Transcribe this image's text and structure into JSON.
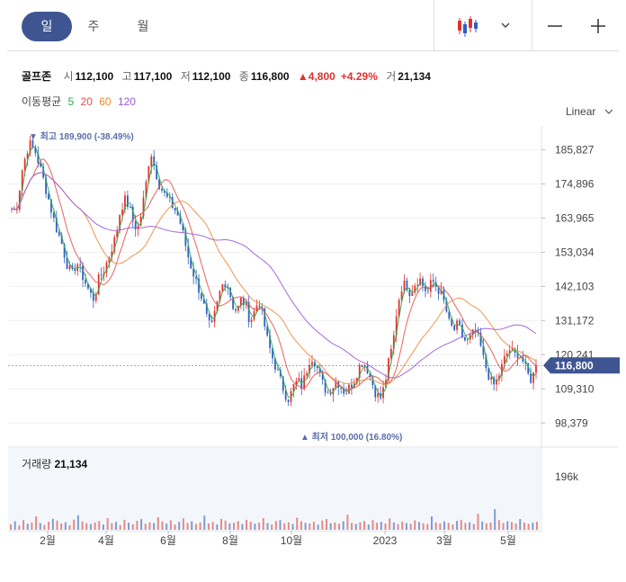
{
  "tabs": [
    {
      "label": "일",
      "active": true
    },
    {
      "label": "주",
      "active": false
    },
    {
      "label": "월",
      "active": false
    }
  ],
  "toolbar": {
    "chart_type_icon": "candlestick-icon",
    "dropdown_icon": "chevron-down-icon",
    "zoom_out_icon": "minus-icon",
    "zoom_in_icon": "plus-icon"
  },
  "quote": {
    "name": "골프존",
    "open_label": "시",
    "open": "112,100",
    "high_label": "고",
    "high": "117,100",
    "low_label": "저",
    "low": "112,100",
    "close_label": "종",
    "close": "116,800",
    "change": "4,800",
    "change_pct": "+4.29%",
    "volume_label": "거",
    "volume": "21,134"
  },
  "ma_legend": {
    "label": "이동평균",
    "items": [
      {
        "period": "5",
        "color": "#2eab4f"
      },
      {
        "period": "20",
        "color": "#e9504c"
      },
      {
        "period": "60",
        "color": "#ee8a3c"
      },
      {
        "period": "120",
        "color": "#9b59d6"
      }
    ]
  },
  "scale_label": "Linear",
  "volume_panel": {
    "title": "거래량",
    "value": "21,134",
    "axis_label": "196k"
  },
  "colors": {
    "up": "#e0332e",
    "down": "#2f5fc4",
    "accent": "#3e5592"
  },
  "chart_data": {
    "type": "candlestick",
    "yticks": [
      185827,
      174896,
      163965,
      153034,
      142103,
      131172,
      120241,
      109310,
      98379
    ],
    "ytick_labels": [
      "185,827",
      "174,896",
      "163,965",
      "153,034",
      "142,103",
      "131,172",
      "120,241",
      "109,310",
      "98,379"
    ],
    "ylim": [
      95000,
      192000
    ],
    "xtick_labels": [
      "2월",
      "4월",
      "6월",
      "8월",
      "10월",
      "2023",
      "3월",
      "5월"
    ],
    "high_marker": {
      "text": "▼ 최고 189,900 (-38.49%)",
      "value": 189900
    },
    "low_marker": {
      "text": "▲ 최저 100,000 (16.80%)",
      "value": 100000
    },
    "last_price": {
      "label": "116,800",
      "value": 116800
    },
    "ma_periods": [
      5,
      20,
      60,
      120
    ],
    "close_path": [
      [
        0,
        167000
      ],
      [
        4,
        166000
      ],
      [
        10,
        180000
      ],
      [
        16,
        188000
      ],
      [
        22,
        185000
      ],
      [
        28,
        178000
      ],
      [
        34,
        170000
      ],
      [
        40,
        162000
      ],
      [
        46,
        156000
      ],
      [
        52,
        148000
      ],
      [
        56,
        146000
      ],
      [
        60,
        150000
      ],
      [
        66,
        145000
      ],
      [
        72,
        140000
      ],
      [
        76,
        138000
      ],
      [
        80,
        144000
      ],
      [
        86,
        148000
      ],
      [
        90,
        152000
      ],
      [
        96,
        158000
      ],
      [
        100,
        166000
      ],
      [
        104,
        170000
      ],
      [
        108,
        168000
      ],
      [
        112,
        163000
      ],
      [
        116,
        160000
      ],
      [
        120,
        166000
      ],
      [
        124,
        175000
      ],
      [
        128,
        186000
      ],
      [
        132,
        180000
      ],
      [
        136,
        175000
      ],
      [
        140,
        172000
      ],
      [
        144,
        170000
      ],
      [
        148,
        168000
      ],
      [
        152,
        166000
      ],
      [
        156,
        162000
      ],
      [
        160,
        156000
      ],
      [
        164,
        150000
      ],
      [
        168,
        146000
      ],
      [
        172,
        142000
      ],
      [
        176,
        138000
      ],
      [
        180,
        132000
      ],
      [
        184,
        128000
      ],
      [
        188,
        134000
      ],
      [
        192,
        140000
      ],
      [
        196,
        144000
      ],
      [
        200,
        142000
      ],
      [
        204,
        136000
      ],
      [
        208,
        134000
      ],
      [
        212,
        138000
      ],
      [
        216,
        136000
      ],
      [
        220,
        131000
      ],
      [
        224,
        134000
      ],
      [
        228,
        138000
      ],
      [
        232,
        132000
      ],
      [
        236,
        125000
      ],
      [
        240,
        120000
      ],
      [
        244,
        116000
      ],
      [
        248,
        112000
      ],
      [
        252,
        108000
      ],
      [
        256,
        106000
      ],
      [
        260,
        110000
      ],
      [
        264,
        112000
      ],
      [
        268,
        110000
      ],
      [
        272,
        115000
      ],
      [
        276,
        120000
      ],
      [
        280,
        118000
      ],
      [
        284,
        114000
      ],
      [
        288,
        110000
      ],
      [
        292,
        108000
      ],
      [
        296,
        110000
      ],
      [
        300,
        112000
      ],
      [
        304,
        110000
      ],
      [
        308,
        108000
      ],
      [
        312,
        110000
      ],
      [
        316,
        112000
      ],
      [
        320,
        116000
      ],
      [
        324,
        118000
      ],
      [
        328,
        116000
      ],
      [
        332,
        112000
      ],
      [
        336,
        108000
      ],
      [
        340,
        106000
      ],
      [
        344,
        110000
      ],
      [
        348,
        118000
      ],
      [
        352,
        124000
      ],
      [
        356,
        136000
      ],
      [
        360,
        142000
      ],
      [
        364,
        143000
      ],
      [
        368,
        140000
      ],
      [
        372,
        143000
      ],
      [
        376,
        145000
      ],
      [
        380,
        142000
      ],
      [
        384,
        140000
      ],
      [
        388,
        144000
      ],
      [
        392,
        142000
      ],
      [
        396,
        140000
      ],
      [
        400,
        136000
      ],
      [
        404,
        130000
      ],
      [
        408,
        128000
      ],
      [
        412,
        130000
      ],
      [
        416,
        126000
      ],
      [
        420,
        124000
      ],
      [
        424,
        126000
      ],
      [
        428,
        128000
      ],
      [
        432,
        124000
      ],
      [
        436,
        118000
      ],
      [
        440,
        114000
      ],
      [
        444,
        110000
      ],
      [
        448,
        112000
      ],
      [
        452,
        116000
      ],
      [
        456,
        120000
      ],
      [
        460,
        122000
      ],
      [
        464,
        120000
      ],
      [
        468,
        121000
      ],
      [
        472,
        118000
      ],
      [
        476,
        114000
      ],
      [
        480,
        112000
      ],
      [
        484,
        116800
      ]
    ],
    "volume_values": [
      22,
      35,
      18,
      40,
      25,
      30,
      55,
      28,
      20,
      33,
      45,
      38,
      26,
      31,
      19,
      42,
      60,
      35,
      28,
      24,
      30,
      36,
      22,
      48,
      27,
      33,
      20,
      41,
      29,
      23,
      37,
      44,
      25,
      31,
      28,
      52,
      34,
      26,
      39,
      21,
      33,
      47,
      28,
      35,
      24,
      30,
      58,
      26,
      32,
      22,
      45,
      38,
      27,
      29,
      36,
      24,
      41,
      33,
      25,
      30,
      48,
      28,
      22,
      36,
      40,
      27,
      31,
      24,
      50,
      35,
      29,
      26,
      33,
      21,
      38,
      44,
      27,
      30,
      25,
      35,
      62,
      28,
      24,
      31,
      36,
      22,
      40,
      29,
      33,
      26,
      47,
      30,
      23,
      34,
      28,
      25,
      39,
      32,
      27,
      24,
      55,
      30,
      26,
      35,
      29,
      22,
      37,
      41,
      28,
      31,
      24,
      66,
      34,
      27,
      30,
      85,
      40,
      28,
      35,
      32,
      26,
      44,
      30,
      25,
      29,
      33
    ],
    "volume_ymax": 196
  }
}
